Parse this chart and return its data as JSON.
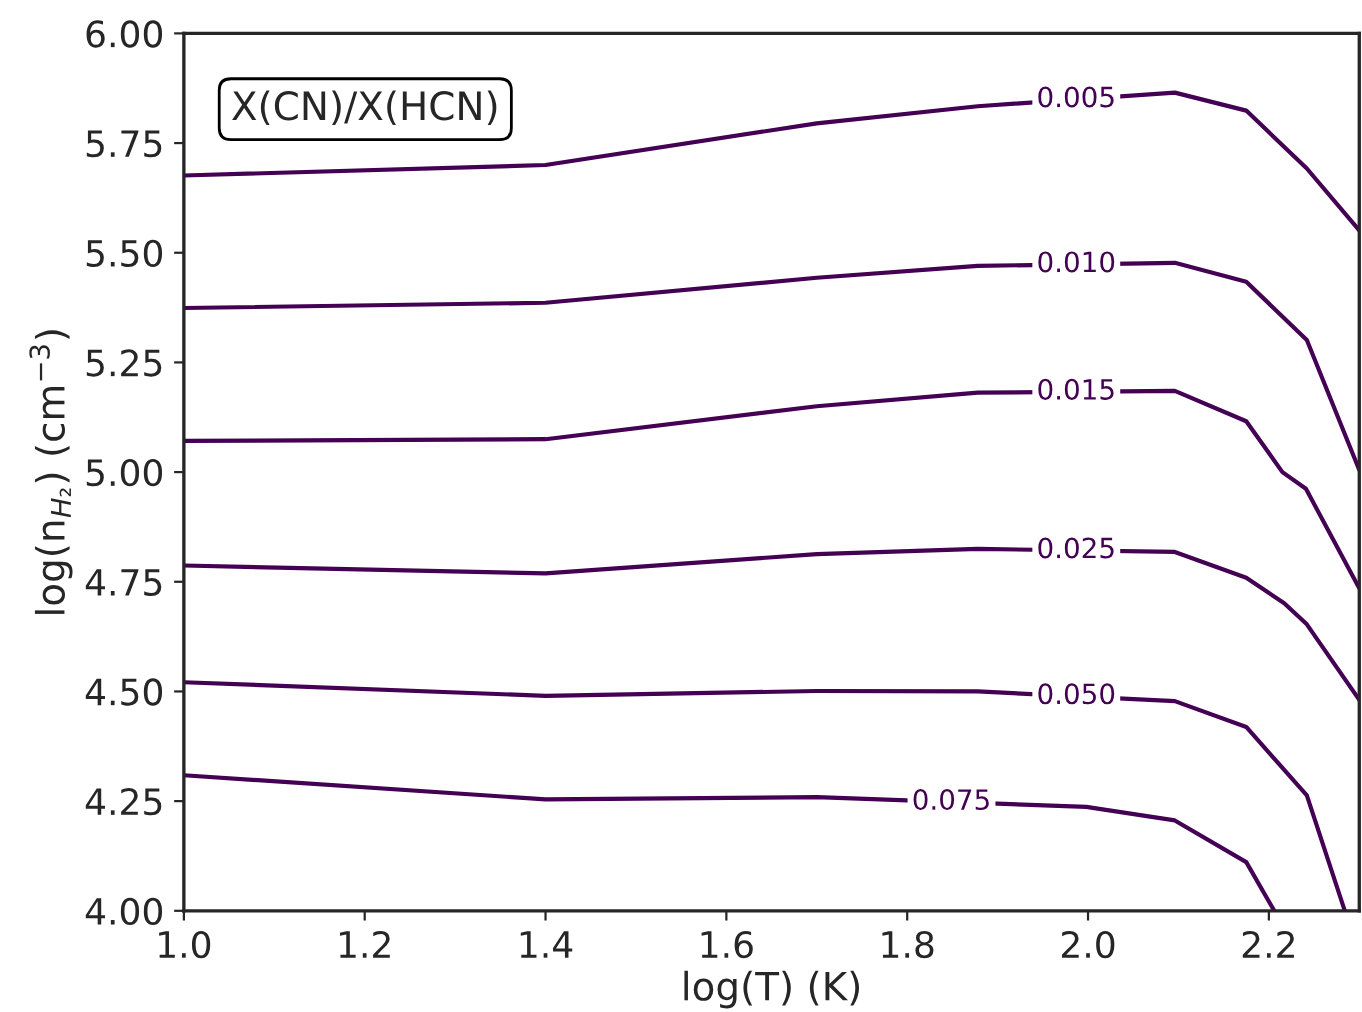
{
  "chart_data": {
    "type": "line",
    "xlabel": "log(T) (K)",
    "ylabel": "log(n$_{H₂}$) (cm$^{−3}$)",
    "annotations": [
      "X(CN)/X(HCN)"
    ],
    "xlim": [
      1.0,
      2.3
    ],
    "ylim": [
      4.0,
      6.0
    ],
    "xticks": [
      {
        "value": 1.0,
        "label": "1.0"
      },
      1.2,
      1.4,
      1.6,
      1.8,
      {
        "value": 2.0,
        "label": "2.0"
      },
      2.2
    ],
    "yticks": [
      {
        "value": 4.0,
        "label": "4.00"
      },
      {
        "value": 4.25,
        "label": "4.25"
      },
      {
        "value": 4.5,
        "label": "4.50"
      },
      {
        "value": 4.75,
        "label": "4.75"
      },
      {
        "value": 5.0,
        "label": "5.00"
      },
      {
        "value": 5.25,
        "label": "5.25"
      },
      {
        "value": 5.5,
        "label": "5.50"
      },
      {
        "value": 5.75,
        "label": "5.75"
      },
      {
        "value": 6.0,
        "label": "6.00"
      }
    ],
    "grid": false,
    "legend": false,
    "marker": "none",
    "line_style": "solid",
    "series": [
      {
        "name": "0.005",
        "color": "#440154",
        "x": [
          1.0,
          1.4,
          1.7,
          1.878,
          2.096,
          2.175,
          2.242,
          2.3
        ],
        "values": [
          5.676,
          5.7,
          5.795,
          5.834,
          5.865,
          5.824,
          5.692,
          5.551
        ]
      },
      {
        "name": "0.010",
        "color": "#440154",
        "x": [
          1.0,
          1.4,
          1.7,
          1.878,
          2.096,
          2.175,
          2.242,
          2.3
        ],
        "values": [
          5.374,
          5.386,
          5.443,
          5.47,
          5.477,
          5.434,
          5.301,
          5.005
        ]
      },
      {
        "name": "0.015",
        "color": "#440154",
        "x": [
          1.0,
          1.4,
          1.7,
          1.878,
          2.096,
          2.175,
          2.215,
          2.241,
          2.3
        ],
        "values": [
          5.071,
          5.075,
          5.15,
          5.181,
          5.185,
          5.116,
          5.0,
          4.962,
          4.735
        ]
      },
      {
        "name": "0.025",
        "color": "#440154",
        "x": [
          1.0,
          1.4,
          1.7,
          1.878,
          2.096,
          2.175,
          2.217,
          2.242,
          2.3
        ],
        "values": [
          4.787,
          4.769,
          4.813,
          4.825,
          4.818,
          4.759,
          4.701,
          4.653,
          4.481
        ]
      },
      {
        "name": "0.050",
        "color": "#440154",
        "x": [
          1.0,
          1.4,
          1.7,
          1.878,
          2.096,
          2.175,
          2.242,
          2.284
        ],
        "values": [
          4.521,
          4.49,
          4.501,
          4.5,
          4.478,
          4.419,
          4.263,
          4.0
        ]
      },
      {
        "name": "0.075",
        "color": "#440154",
        "x": [
          1.0,
          1.4,
          1.7,
          1.998,
          2.096,
          2.175,
          2.206
        ],
        "values": [
          4.309,
          4.254,
          4.259,
          4.237,
          4.206,
          4.111,
          4.0
        ]
      }
    ]
  }
}
